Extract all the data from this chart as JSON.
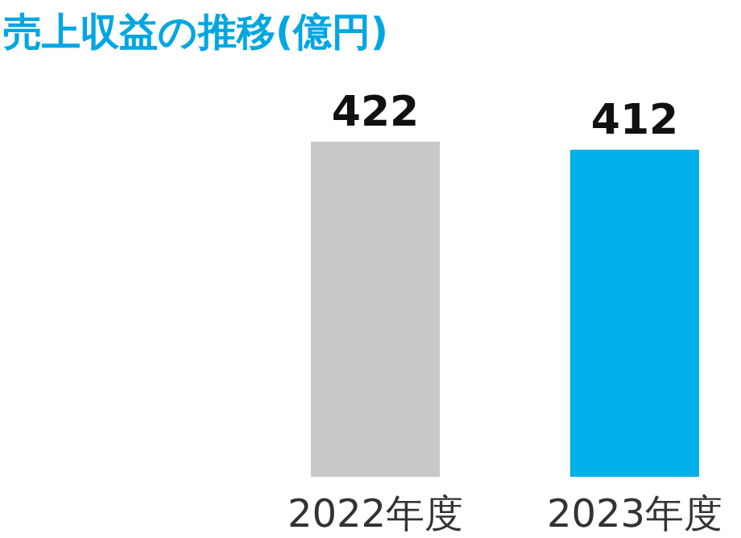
{
  "chart_data": {
    "type": "bar",
    "title": "売上収益の推移(億円)",
    "categories": [
      "2022年度",
      "2023年度"
    ],
    "values": [
      422,
      412
    ],
    "colors": [
      "#c8c8c8",
      "#00b0e9"
    ],
    "data_labels": true
  }
}
